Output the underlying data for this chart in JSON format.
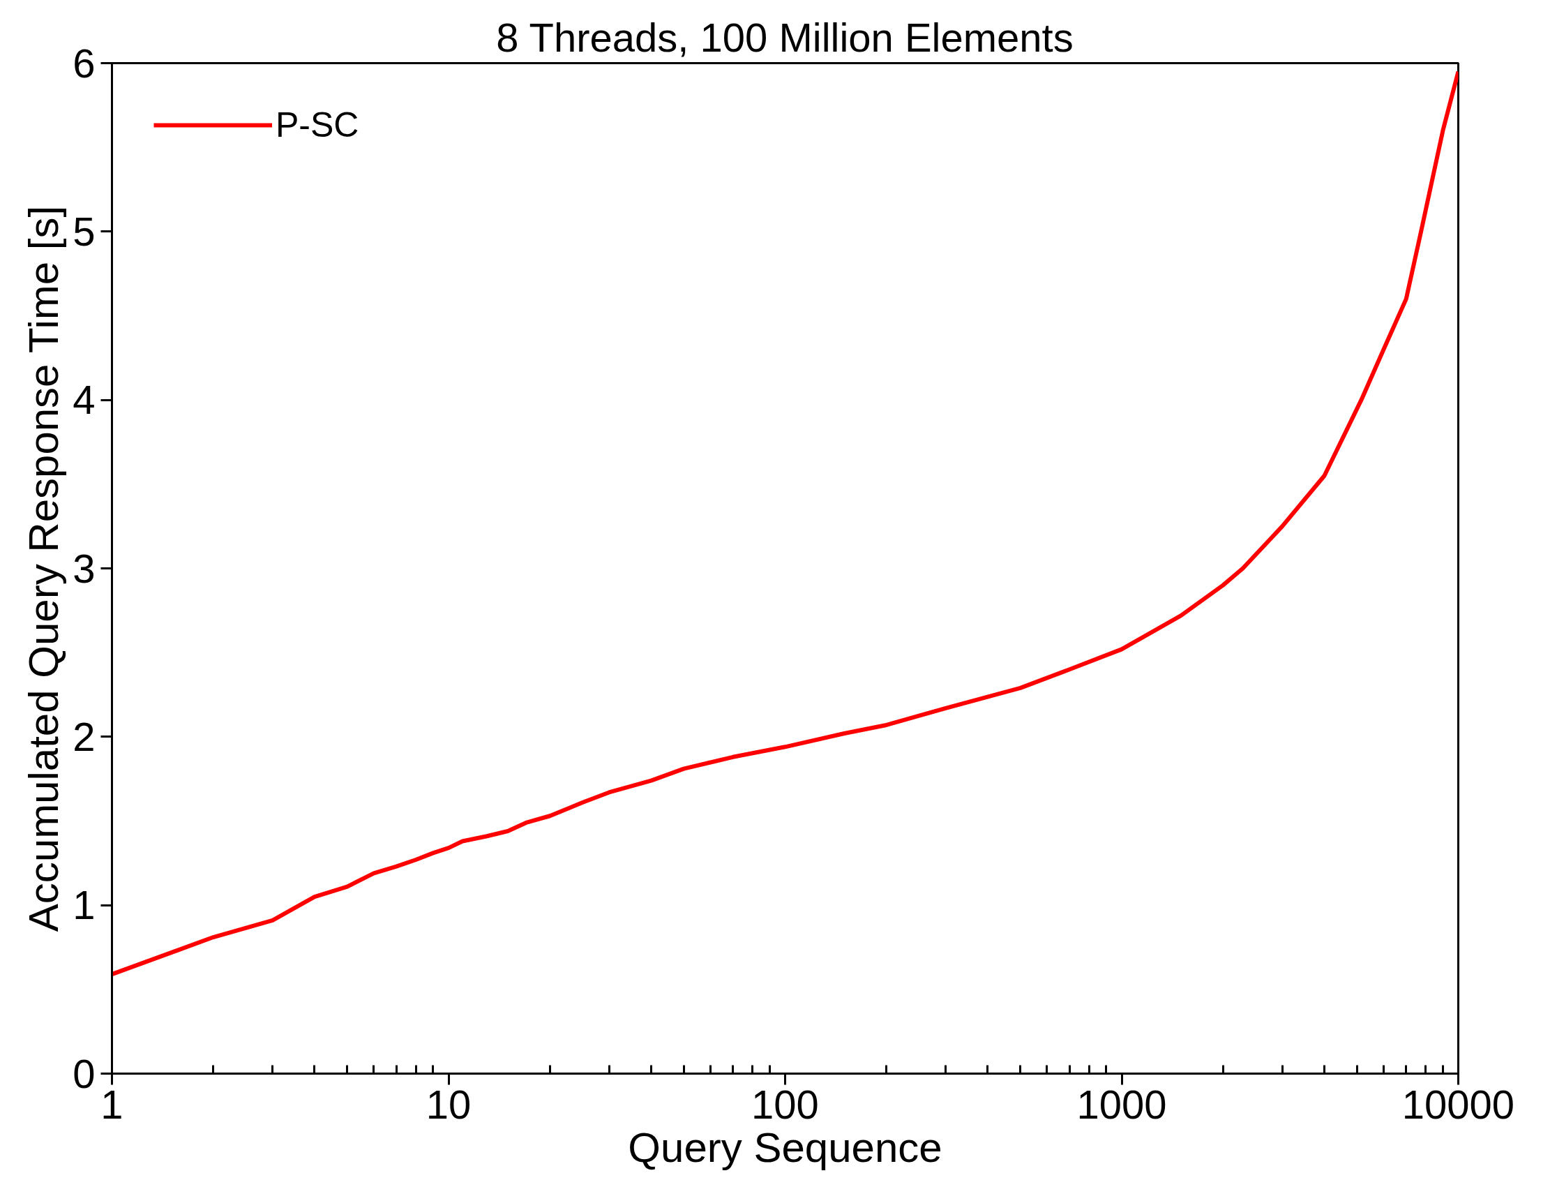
{
  "chart_data": {
    "type": "line",
    "title": "8 Threads, 100 Million Elements",
    "xlabel": "Query Sequence",
    "ylabel": "Accumulated Query Response Time [s]",
    "log": "x",
    "xlim": [
      1,
      10000
    ],
    "ylim": [
      0,
      6
    ],
    "xticks": [
      1,
      10,
      100,
      1000,
      10000
    ],
    "yticks": [
      0,
      1,
      2,
      3,
      4,
      5,
      6
    ],
    "grid": false,
    "legend": "top left",
    "marker": "none",
    "line_style": "solid",
    "x": [
      1,
      2,
      3,
      4,
      5,
      6,
      7,
      8,
      9,
      10,
      11,
      13,
      15,
      17,
      20,
      23,
      25,
      30,
      40,
      50,
      70,
      100,
      150,
      200,
      300,
      500,
      700,
      1000,
      1500,
      2000,
      2290,
      3000,
      4000,
      5150,
      6000,
      7000,
      7750,
      9000,
      10000
    ],
    "series": [
      {
        "name": "P-SC",
        "color": "#ff0000",
        "values": [
          0.59,
          0.81,
          0.91,
          1.05,
          1.11,
          1.19,
          1.23,
          1.27,
          1.31,
          1.34,
          1.38,
          1.41,
          1.44,
          1.49,
          1.53,
          1.58,
          1.61,
          1.67,
          1.74,
          1.81,
          1.88,
          1.94,
          2.02,
          2.07,
          2.17,
          2.29,
          2.4,
          2.52,
          2.72,
          2.9,
          3.0,
          3.25,
          3.55,
          4.0,
          4.3,
          4.6,
          5.0,
          5.6,
          5.95
        ]
      }
    ]
  }
}
